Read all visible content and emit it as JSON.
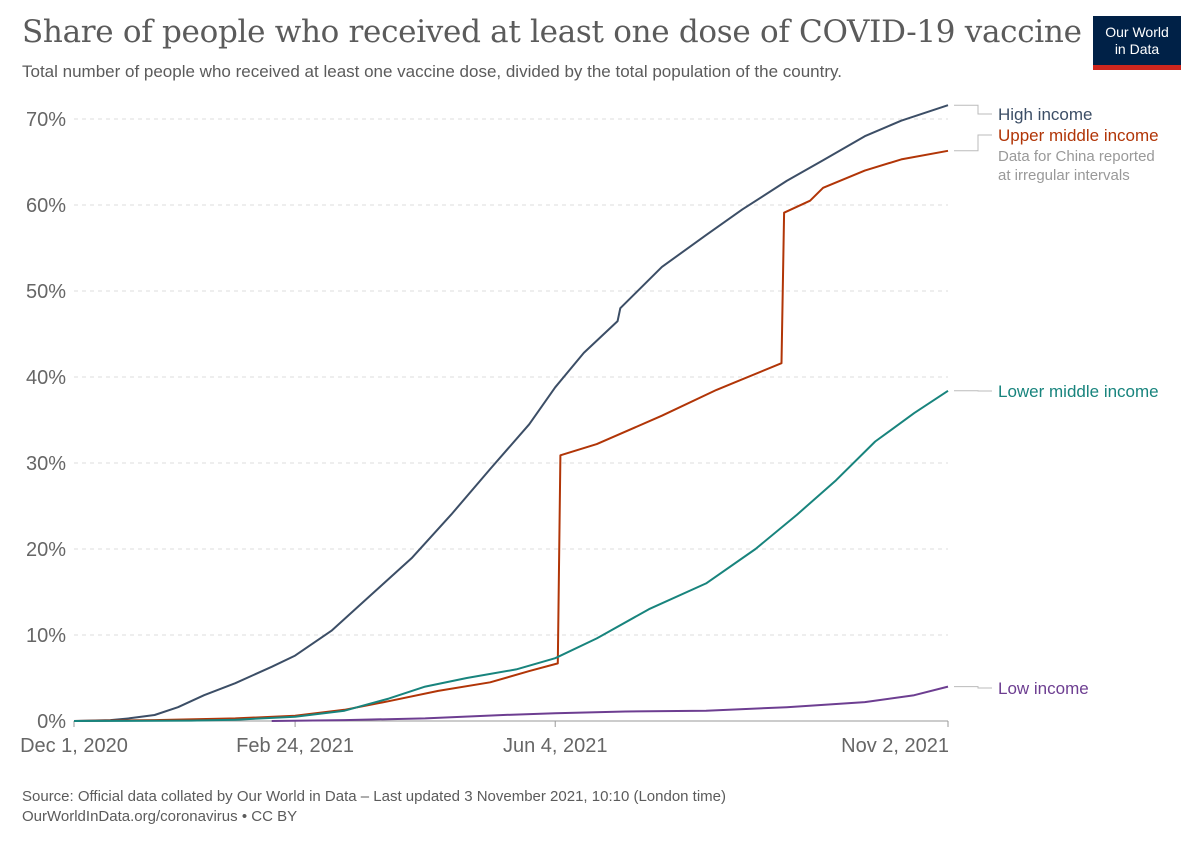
{
  "header": {
    "title": "Share of people who received at least one dose of COVID-19 vaccine",
    "subtitle": "Total number of people who received at least one vaccine dose, divided by the total population of the country."
  },
  "logo": {
    "line1": "Our World",
    "line2": "in Data",
    "bg_color": "#002147",
    "accent_color": "#ce261e"
  },
  "footer": {
    "source": "Source: Official data collated by Our World in Data – Last updated 3 November 2021, 10:10 (London time)",
    "link": "OurWorldInData.org/coronavirus • CC BY"
  },
  "chart_data": {
    "type": "line",
    "title": "Share of people who received at least one dose of COVID-19 vaccine",
    "subtitle": "Total number of people who received at least one vaccine dose, divided by the total population of the country.",
    "x_type": "date",
    "xlim": [
      "2020-12-01",
      "2021-11-02"
    ],
    "x_ticks": [
      {
        "date": "2020-12-01",
        "label": "Dec 1, 2020"
      },
      {
        "date": "2021-02-24",
        "label": "Feb 24, 2021"
      },
      {
        "date": "2021-06-04",
        "label": "Jun 4, 2021"
      },
      {
        "date": "2021-11-02",
        "label": "Nov 2, 2021"
      }
    ],
    "ylim": [
      0,
      70
    ],
    "y_ticks": [
      0,
      10,
      20,
      30,
      40,
      50,
      60,
      70
    ],
    "y_tick_labels": [
      "0%",
      "10%",
      "20%",
      "30%",
      "40%",
      "50%",
      "60%",
      "70%"
    ],
    "grid": true,
    "legend": "right",
    "note": [
      "Data for China reported",
      "at irregular intervals"
    ],
    "series": [
      {
        "name": "High income",
        "color": "#3c4e66",
        "points": [
          [
            "2020-12-01",
            0
          ],
          [
            "2020-12-15",
            0.1
          ],
          [
            "2020-12-22",
            0.3
          ],
          [
            "2021-01-01",
            0.7
          ],
          [
            "2021-01-10",
            1.6
          ],
          [
            "2021-01-20",
            3.0
          ],
          [
            "2021-02-01",
            4.4
          ],
          [
            "2021-02-15",
            6.3
          ],
          [
            "2021-02-24",
            7.6
          ],
          [
            "2021-03-10",
            10.5
          ],
          [
            "2021-03-25",
            14.6
          ],
          [
            "2021-04-10",
            19.0
          ],
          [
            "2021-04-25",
            24.0
          ],
          [
            "2021-05-10",
            29.3
          ],
          [
            "2021-05-25",
            34.5
          ],
          [
            "2021-06-04",
            38.8
          ],
          [
            "2021-06-15",
            42.8
          ],
          [
            "2021-06-28",
            46.5
          ],
          [
            "2021-06-29",
            48.0
          ],
          [
            "2021-07-15",
            52.8
          ],
          [
            "2021-08-01",
            56.5
          ],
          [
            "2021-08-15",
            59.5
          ],
          [
            "2021-09-01",
            62.8
          ],
          [
            "2021-09-15",
            65.2
          ],
          [
            "2021-10-01",
            68.0
          ],
          [
            "2021-10-15",
            69.8
          ],
          [
            "2021-11-02",
            71.6
          ]
        ]
      },
      {
        "name": "Upper middle income",
        "color": "#b13507",
        "points": [
          [
            "2020-12-01",
            0
          ],
          [
            "2021-01-01",
            0.1
          ],
          [
            "2021-02-01",
            0.3
          ],
          [
            "2021-02-24",
            0.6
          ],
          [
            "2021-03-15",
            1.3
          ],
          [
            "2021-04-01",
            2.3
          ],
          [
            "2021-04-20",
            3.5
          ],
          [
            "2021-05-10",
            4.5
          ],
          [
            "2021-05-25",
            5.8
          ],
          [
            "2021-06-05",
            6.7
          ],
          [
            "2021-06-06",
            30.9
          ],
          [
            "2021-06-20",
            32.2
          ],
          [
            "2021-07-15",
            35.5
          ],
          [
            "2021-08-05",
            38.5
          ],
          [
            "2021-08-30",
            41.6
          ],
          [
            "2021-08-31",
            59.1
          ],
          [
            "2021-09-10",
            60.5
          ],
          [
            "2021-09-15",
            62.0
          ],
          [
            "2021-10-01",
            64.0
          ],
          [
            "2021-10-15",
            65.3
          ],
          [
            "2021-11-02",
            66.3
          ]
        ]
      },
      {
        "name": "Lower middle income",
        "color": "#18847d",
        "points": [
          [
            "2020-12-01",
            0
          ],
          [
            "2021-01-15",
            0.05
          ],
          [
            "2021-02-01",
            0.15
          ],
          [
            "2021-02-24",
            0.5
          ],
          [
            "2021-03-15",
            1.2
          ],
          [
            "2021-04-01",
            2.6
          ],
          [
            "2021-04-15",
            4.0
          ],
          [
            "2021-05-01",
            5.0
          ],
          [
            "2021-05-20",
            6.0
          ],
          [
            "2021-06-04",
            7.3
          ],
          [
            "2021-06-20",
            9.6
          ],
          [
            "2021-07-10",
            13.0
          ],
          [
            "2021-08-01",
            16.0
          ],
          [
            "2021-08-20",
            20.0
          ],
          [
            "2021-09-05",
            24.0
          ],
          [
            "2021-09-20",
            28.0
          ],
          [
            "2021-10-05",
            32.5
          ],
          [
            "2021-10-20",
            35.8
          ],
          [
            "2021-11-02",
            38.4
          ]
        ]
      },
      {
        "name": "Low income",
        "color": "#6d3e91",
        "points": [
          [
            "2021-02-15",
            0
          ],
          [
            "2021-03-15",
            0.1
          ],
          [
            "2021-04-15",
            0.3
          ],
          [
            "2021-05-15",
            0.7
          ],
          [
            "2021-06-04",
            0.9
          ],
          [
            "2021-07-01",
            1.1
          ],
          [
            "2021-08-01",
            1.2
          ],
          [
            "2021-09-01",
            1.6
          ],
          [
            "2021-10-01",
            2.2
          ],
          [
            "2021-10-20",
            3.0
          ],
          [
            "2021-11-02",
            4.0
          ]
        ]
      }
    ]
  }
}
